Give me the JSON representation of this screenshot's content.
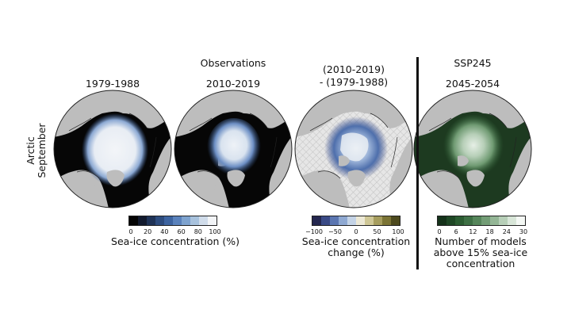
{
  "headers": {
    "observations": "Observations",
    "period1": "1979-1988",
    "period2": "2010-2019",
    "diff_line1": "(2010-2019)",
    "diff_line2": "- (1979-1988)",
    "scenario": "SSP245",
    "period3": "2045-2054"
  },
  "row_label": {
    "line1": "Arctic",
    "line2": "September"
  },
  "colorbars": {
    "concentration": {
      "label": "Sea-ice concentration (%)",
      "ticks": [
        "0",
        "20",
        "40",
        "60",
        "80",
        "100"
      ],
      "colors": [
        "#050505",
        "#121a2e",
        "#1f3357",
        "#2d4c7e",
        "#3d64a0",
        "#5a82bc",
        "#7ea3cf",
        "#a8c2dd",
        "#d0dcea",
        "#f2f4f7"
      ]
    },
    "change": {
      "label_line1": "Sea-ice concentration",
      "label_line2": "change (%)",
      "ticks": [
        "−100",
        "−50",
        "0",
        "50",
        "100"
      ],
      "colors": [
        "#24274f",
        "#3a4a86",
        "#5b76b1",
        "#8fa9d2",
        "#c4d3e6",
        "#ece8d5",
        "#cfc796",
        "#a69d5e",
        "#7b7435",
        "#4d4a1e"
      ]
    },
    "models": {
      "label_line1": "Number of models",
      "label_line2": "above 15% sea-ice",
      "label_line3": "concentration",
      "ticks": [
        "0",
        "6",
        "12",
        "18",
        "24",
        "30"
      ],
      "colors": [
        "#15321a",
        "#1e4725",
        "#2b5c32",
        "#3e7045",
        "#56865b",
        "#739d76",
        "#94b696",
        "#b7cfb8",
        "#d8e6d8",
        "#f4f8f4"
      ]
    }
  },
  "map_colors": {
    "land": "#bdbdbd",
    "ocean_obs": "#060606",
    "ocean_models": "#1d3a20",
    "hatch_bg": "#e6e6e6",
    "coast": "#222222"
  }
}
